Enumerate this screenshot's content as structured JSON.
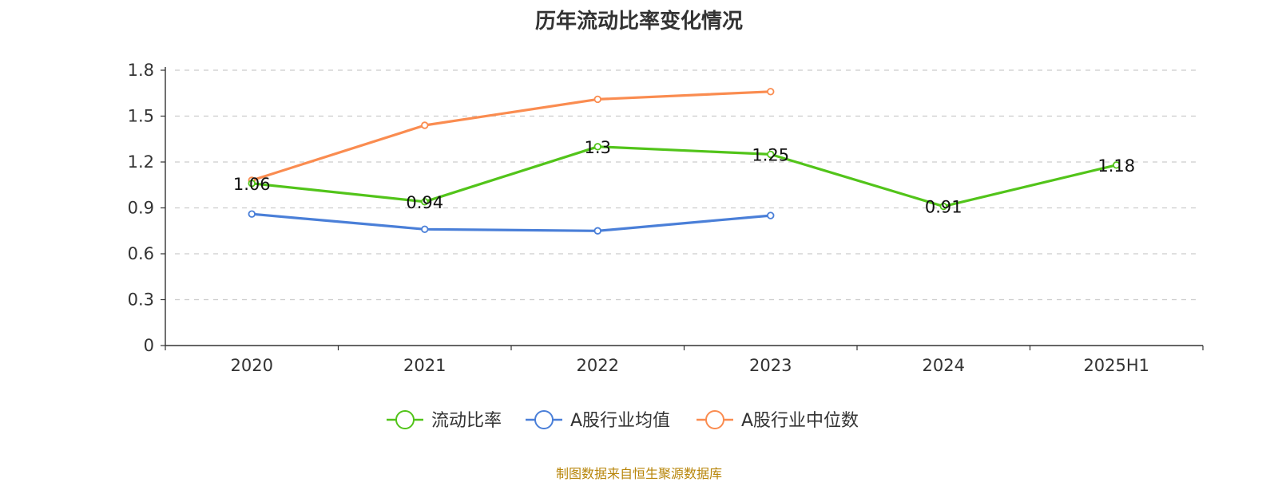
{
  "chart_data": {
    "type": "line",
    "title": "历年流动比率变化情况",
    "categories": [
      "2020",
      "2021",
      "2022",
      "2023",
      "2024",
      "2025H1"
    ],
    "ylim": [
      0,
      1.8
    ],
    "yticks": [
      "0",
      "0.3",
      "0.6",
      "0.9",
      "1.2",
      "1.5",
      "1.8"
    ],
    "grid": true,
    "legend_position": "bottom",
    "series": [
      {
        "name": "流动比率",
        "color": "#52c41a",
        "values": [
          1.06,
          0.94,
          1.3,
          1.25,
          0.91,
          1.18
        ],
        "labels": [
          "1.06",
          "0.94",
          "1.3",
          "1.25",
          "0.91",
          "1.18"
        ]
      },
      {
        "name": "A股行业均值",
        "color": "#4a7fd8",
        "values": [
          0.86,
          0.76,
          0.75,
          0.85,
          null,
          null
        ]
      },
      {
        "name": "A股行业中位数",
        "color": "#fa8c50",
        "values": [
          1.08,
          1.44,
          1.61,
          1.66,
          null,
          null
        ]
      }
    ]
  },
  "footer": {
    "source": "制图数据来自恒生聚源数据库"
  }
}
